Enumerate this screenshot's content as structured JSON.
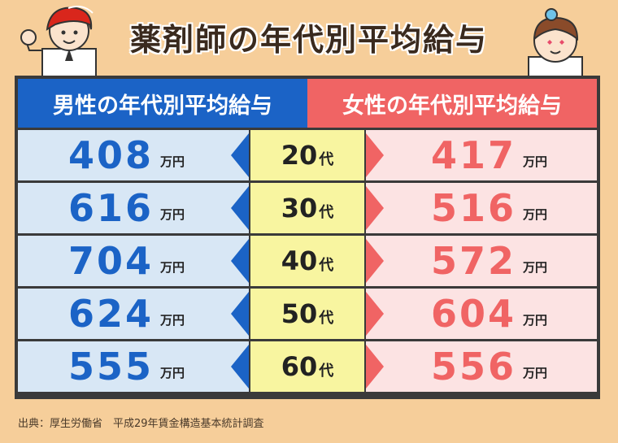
{
  "title": "薬剤師の年代別平均給与",
  "headers": {
    "male": "男性の年代別平均給与",
    "female": "女性の年代別平均給与"
  },
  "unit": "万円",
  "age_suffix": "代",
  "rows": [
    {
      "age": "20",
      "male": "408",
      "female": "417"
    },
    {
      "age": "30",
      "male": "616",
      "female": "516"
    },
    {
      "age": "40",
      "male": "704",
      "female": "572"
    },
    {
      "age": "50",
      "male": "624",
      "female": "604"
    },
    {
      "age": "60",
      "male": "555",
      "female": "556"
    }
  ],
  "source": "出典：厚生労働省　平成29年賃金構造基本統計調査",
  "colors": {
    "background": "#F6CE9A",
    "male": "#1B63C6",
    "female": "#F06464",
    "age_cell": "#F8F5A0",
    "male_cell": "#D8E7F5",
    "female_cell": "#FCE3E3"
  },
  "illustrations": [
    "male-pharmacist-icon",
    "female-pharmacist-icon"
  ]
}
